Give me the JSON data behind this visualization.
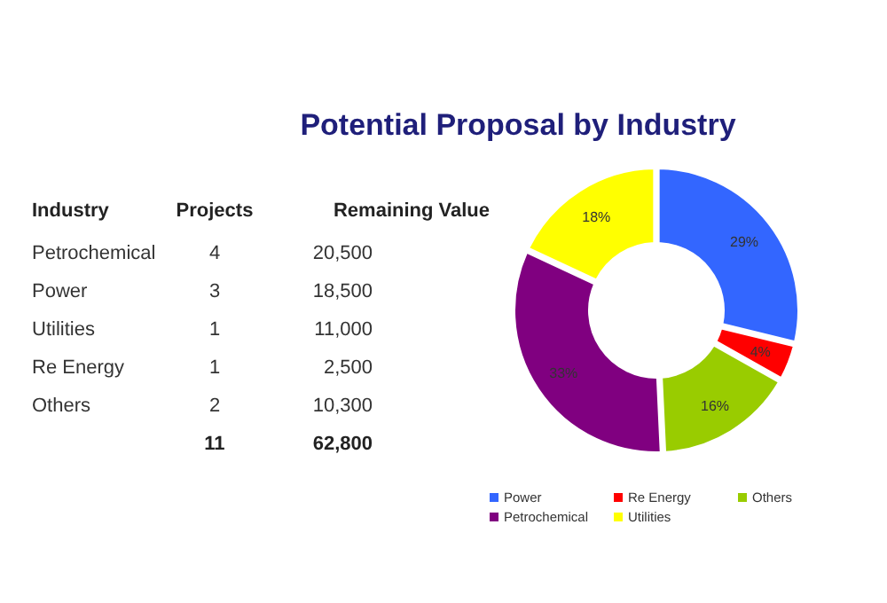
{
  "chart_data": [
    {
      "type": "other",
      "title": "Potential Proposal by Industry",
      "xlabel": "Industry",
      "categories": [
        "Petrochemical",
        "Power",
        "Utilities",
        "Re Energy",
        "Others"
      ],
      "series": [
        {
          "name": "Projects",
          "values": [
            4,
            3,
            1,
            1,
            2
          ]
        },
        {
          "name": "Remaining Value",
          "values": [
            20500,
            18500,
            11000,
            2500,
            10300
          ],
          "value_labels": [
            "20,500",
            "18,500",
            "11,000",
            "2,500",
            "10,300"
          ]
        }
      ],
      "data_labels": true,
      "totals": [
        "11",
        "62,800"
      ]
    },
    {
      "type": "donut",
      "categories": [
        "Power",
        "Re Energy",
        "Others",
        "Petrochemical",
        "Utilities"
      ],
      "values": [
        29,
        4,
        16,
        33,
        18
      ],
      "colors": [
        "#3366ff",
        "#ff0000",
        "#99cc00",
        "#800080",
        "#ffff00"
      ],
      "value_labels": [
        "29%",
        "4%",
        "16%",
        "33%",
        "18%"
      ],
      "legend": "bottom"
    }
  ]
}
